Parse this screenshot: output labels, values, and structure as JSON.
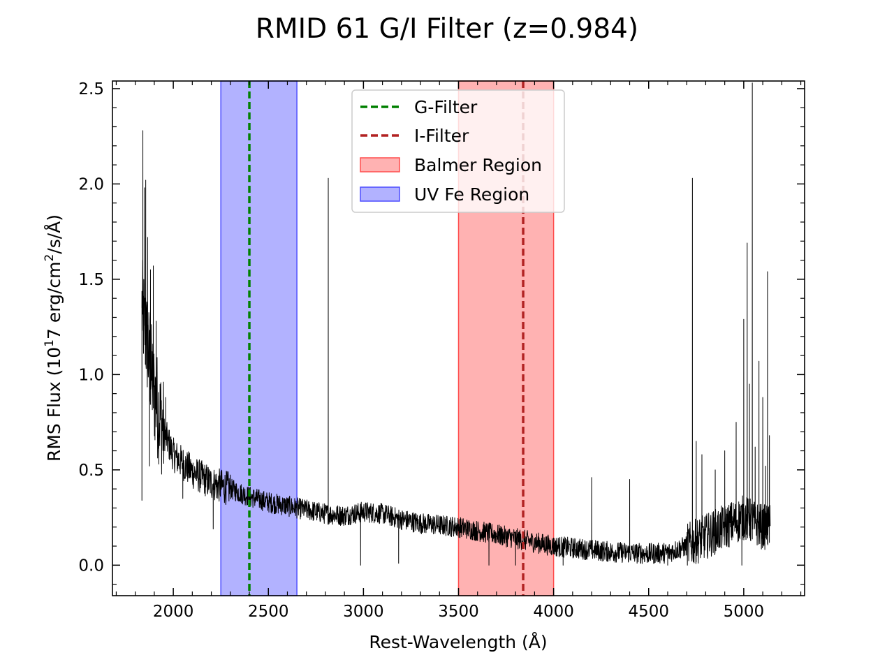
{
  "chart_data": {
    "type": "line",
    "title": "RMID 61 G/I Filter (z=0.984)",
    "xlabel": "Rest-Wavelength (Å)",
    "ylabel_parts": {
      "prefix": "RMS Flux (10",
      "superscript": "1",
      "middle": "7 erg/cm",
      "superscript2": "2",
      "suffix": "/s/Å)"
    },
    "xlim": [
      1680,
      5320
    ],
    "ylim": [
      -0.16,
      2.54
    ],
    "x_ticks": [
      2000,
      2500,
      3000,
      3500,
      4000,
      4500,
      5000
    ],
    "x_tick_labels": [
      "2000",
      "2500",
      "3000",
      "3500",
      "4000",
      "4500",
      "5000"
    ],
    "y_ticks": [
      0.0,
      0.5,
      1.0,
      1.5,
      2.0,
      2.5
    ],
    "y_tick_labels": [
      "0.0",
      "0.5",
      "1.0",
      "1.5",
      "2.0",
      "2.5"
    ],
    "series": [
      {
        "color": "#000000",
        "continuum": {
          "x": [
            1835,
            1850,
            1870,
            1900,
            1950,
            2000,
            2100,
            2200,
            2300,
            2400,
            2500,
            2600,
            2700,
            2800,
            2900,
            3000,
            3100,
            3200,
            3300,
            3400,
            3500,
            3600,
            3700,
            3800,
            3900,
            4000,
            4100,
            4200,
            4300,
            4400,
            4500,
            4600,
            4700,
            4800,
            4900,
            5000,
            5100,
            5140
          ],
          "y": [
            1.35,
            1.25,
            1.1,
            0.9,
            0.7,
            0.58,
            0.49,
            0.43,
            0.4,
            0.36,
            0.33,
            0.31,
            0.29,
            0.27,
            0.26,
            0.28,
            0.27,
            0.24,
            0.22,
            0.21,
            0.2,
            0.18,
            0.16,
            0.14,
            0.12,
            0.1,
            0.09,
            0.08,
            0.07,
            0.065,
            0.06,
            0.065,
            0.1,
            0.15,
            0.2,
            0.25,
            0.2,
            0.2
          ]
        },
        "spikes": [
          {
            "x": 1840,
            "y": 2.28
          },
          {
            "x": 1849,
            "y": 1.98
          },
          {
            "x": 1855,
            "y": 2.02
          },
          {
            "x": 1865,
            "y": 1.72
          },
          {
            "x": 1880,
            "y": 1.55
          },
          {
            "x": 1895,
            "y": 1.57
          },
          {
            "x": 1910,
            "y": 1.28
          },
          {
            "x": 1960,
            "y": 0.88
          },
          {
            "x": 2815,
            "y": 2.03
          },
          {
            "x": 4730,
            "y": 2.03
          },
          {
            "x": 4750,
            "y": 0.65
          },
          {
            "x": 4780,
            "y": 0.58
          },
          {
            "x": 4850,
            "y": 0.5
          },
          {
            "x": 4900,
            "y": 0.6
          },
          {
            "x": 4960,
            "y": 0.75
          },
          {
            "x": 5000,
            "y": 1.29
          },
          {
            "x": 5018,
            "y": 1.69
          },
          {
            "x": 5030,
            "y": 0.95
          },
          {
            "x": 5045,
            "y": 2.53
          },
          {
            "x": 5060,
            "y": 0.62
          },
          {
            "x": 5080,
            "y": 1.07
          },
          {
            "x": 5100,
            "y": 0.88
          },
          {
            "x": 5115,
            "y": 0.52
          },
          {
            "x": 5125,
            "y": 1.54
          },
          {
            "x": 5135,
            "y": 0.68
          },
          {
            "x": 4200,
            "y": 0.46
          },
          {
            "x": 4400,
            "y": 0.45
          }
        ],
        "dips": [
          {
            "x": 1835,
            "y": 0.34
          },
          {
            "x": 1875,
            "y": 0.52
          },
          {
            "x": 2050,
            "y": 0.35
          },
          {
            "x": 2210,
            "y": 0.19
          },
          {
            "x": 2985,
            "y": 0.0
          },
          {
            "x": 3185,
            "y": 0.01
          },
          {
            "x": 3660,
            "y": 0.0
          },
          {
            "x": 3800,
            "y": 0.0
          },
          {
            "x": 4050,
            "y": 0.0
          },
          {
            "x": 4600,
            "y": 0.0
          },
          {
            "x": 4990,
            "y": 0.0
          }
        ]
      }
    ],
    "vlines": [
      {
        "name": "G-Filter",
        "x": 2400,
        "color": "#008000",
        "style": "dashed"
      },
      {
        "name": "I-Filter",
        "x": 3840,
        "color": "#b22222",
        "style": "dashed"
      }
    ],
    "regions": [
      {
        "name": "Balmer Region",
        "x0": 3500,
        "x1": 4000,
        "color": "#ff6666",
        "edge": "#ff4d4d",
        "alpha": 0.5
      },
      {
        "name": "UV Fe Region",
        "x0": 2250,
        "x1": 2650,
        "color": "#6666ff",
        "edge": "#4d4dff",
        "alpha": 0.5
      }
    ],
    "legend": {
      "placement": "upper-center",
      "entries": [
        {
          "label": "G-Filter",
          "kind": "line",
          "color": "#008000"
        },
        {
          "label": "I-Filter",
          "kind": "line",
          "color": "#b22222"
        },
        {
          "label": "Balmer Region",
          "kind": "patch",
          "color": "#ff6666"
        },
        {
          "label": "UV Fe Region",
          "kind": "patch",
          "color": "#6666ff"
        }
      ]
    },
    "grid": false
  }
}
